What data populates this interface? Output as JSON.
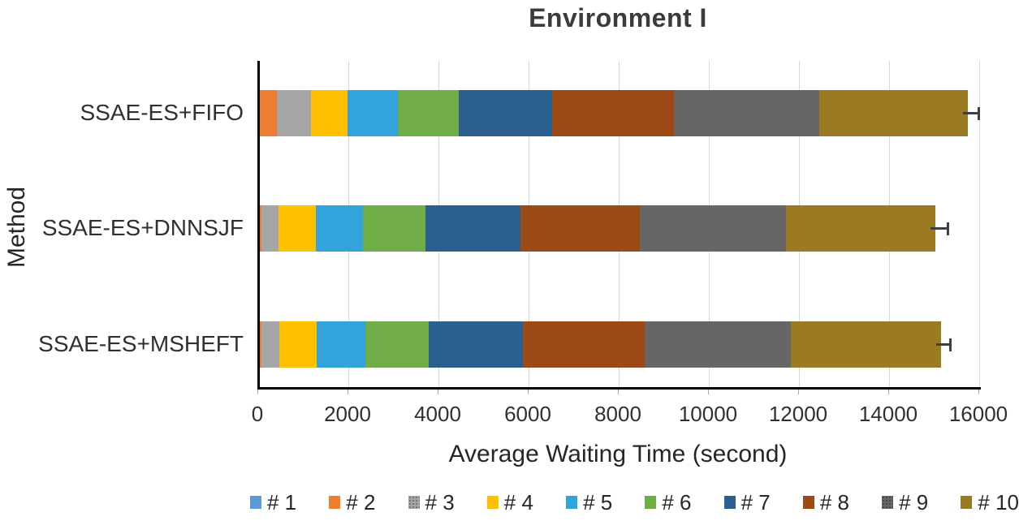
{
  "title": "Environment I",
  "x_axis": {
    "title": "Average Waiting Time (second)",
    "min": 0,
    "max": 16000,
    "tick_step": 2000,
    "tick_labels": [
      "0",
      "2000",
      "4000",
      "6000",
      "8000",
      "10000",
      "12000",
      "14000",
      "16000"
    ]
  },
  "y_axis": {
    "title": "Method"
  },
  "chart_data": {
    "type": "bar",
    "orientation": "horizontal",
    "stacked": true,
    "title": "Environment I",
    "xlabel": "Average Waiting Time (second)",
    "ylabel": "Method",
    "xlim": [
      0,
      16000
    ],
    "grid": true,
    "legend_position": "bottom",
    "categories": [
      "SSAE-ES+FIFO",
      "SSAE-ES+DNNSJF",
      "SSAE-ES+MSHEFT"
    ],
    "series": [
      {
        "name": "# 1",
        "color": "#5b9bd5",
        "textured": false,
        "values": [
          0,
          0,
          0
        ]
      },
      {
        "name": "# 2",
        "color": "#ed7d31",
        "textured": false,
        "values": [
          380,
          30,
          30
        ]
      },
      {
        "name": "# 3",
        "color": "#a6a6a6",
        "textured": true,
        "values": [
          755,
          380,
          395
        ]
      },
      {
        "name": "# 4",
        "color": "#ffc000",
        "textured": false,
        "values": [
          805,
          830,
          845
        ]
      },
      {
        "name": "# 5",
        "color": "#33a3dc",
        "textured": false,
        "values": [
          1130,
          1045,
          1080
        ]
      },
      {
        "name": "# 6",
        "color": "#70ad47",
        "textured": false,
        "values": [
          1345,
          1390,
          1405
        ]
      },
      {
        "name": "# 7",
        "color": "#2a5f8f",
        "textured": false,
        "values": [
          2065,
          2110,
          2090
        ]
      },
      {
        "name": "# 8",
        "color": "#9e4a16",
        "textured": false,
        "values": [
          2710,
          2650,
          2700
        ]
      },
      {
        "name": "# 9",
        "color": "#666666",
        "textured": true,
        "values": [
          3230,
          3245,
          3245
        ]
      },
      {
        "name": "# 10",
        "color": "#9a7a22",
        "textured": false,
        "values": [
          3285,
          3315,
          3335
        ]
      }
    ],
    "error_bars_plus": [
      250,
      270,
      200
    ]
  },
  "colors": {
    "axis": "#000000",
    "gridline": "#d9d9d9",
    "error_bar": "#404040",
    "title_text": "#3b3b3b",
    "label_text": "#262626"
  }
}
